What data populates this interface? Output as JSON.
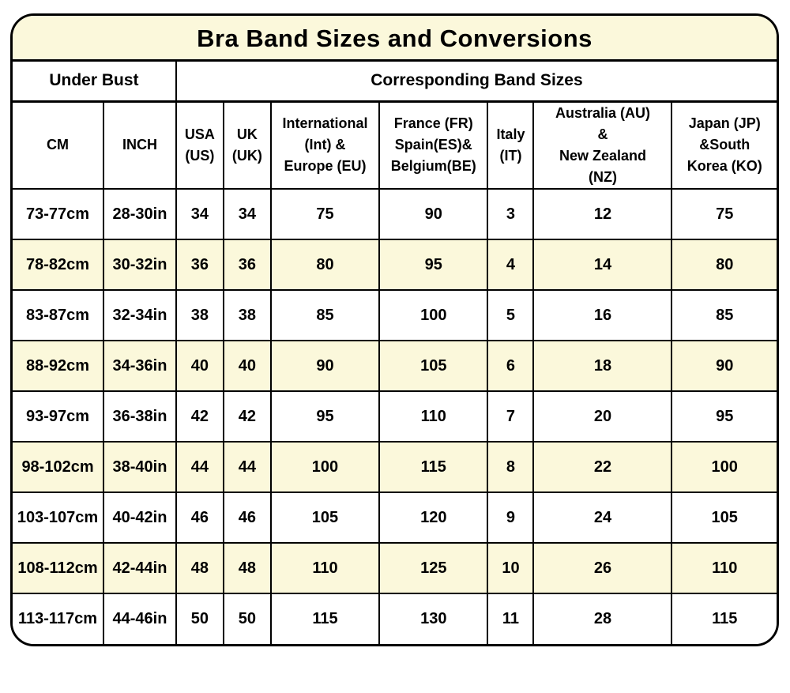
{
  "title": "Bra Band Sizes and Conversions",
  "table": {
    "group_headers": {
      "under_bust": "Under Bust",
      "band_sizes": "Corresponding Band Sizes"
    },
    "columns": [
      "CM",
      "INCH",
      "USA\n(US)",
      "UK\n(UK)",
      "International\n(Int) &\nEurope (EU)",
      "France (FR)\nSpain(ES)&\nBelgium(BE)",
      "Italy\n(IT)",
      "Australia (AU)\n&\nNew Zealand\n(NZ)",
      "Japan (JP)\n&South\nKorea (KO)"
    ],
    "rows": [
      [
        "73-77cm",
        "28-30in",
        "34",
        "34",
        "75",
        "90",
        "3",
        "12",
        "75"
      ],
      [
        "78-82cm",
        "30-32in",
        "36",
        "36",
        "80",
        "95",
        "4",
        "14",
        "80"
      ],
      [
        "83-87cm",
        "32-34in",
        "38",
        "38",
        "85",
        "100",
        "5",
        "16",
        "85"
      ],
      [
        "88-92cm",
        "34-36in",
        "40",
        "40",
        "90",
        "105",
        "6",
        "18",
        "90"
      ],
      [
        "93-97cm",
        "36-38in",
        "42",
        "42",
        "95",
        "110",
        "7",
        "20",
        "95"
      ],
      [
        "98-102cm",
        "38-40in",
        "44",
        "44",
        "100",
        "115",
        "8",
        "22",
        "100"
      ],
      [
        "103-107cm",
        "40-42in",
        "46",
        "46",
        "105",
        "120",
        "9",
        "24",
        "105"
      ],
      [
        "108-112cm",
        "42-44in",
        "48",
        "48",
        "110",
        "125",
        "10",
        "26",
        "110"
      ],
      [
        "113-117cm",
        "44-46in",
        "50",
        "50",
        "115",
        "130",
        "11",
        "28",
        "115"
      ]
    ],
    "colors": {
      "title_bg": "#fbf8db",
      "stripe": "#fbf8db",
      "row_bg": "#ffffff",
      "border": "#000000"
    }
  }
}
